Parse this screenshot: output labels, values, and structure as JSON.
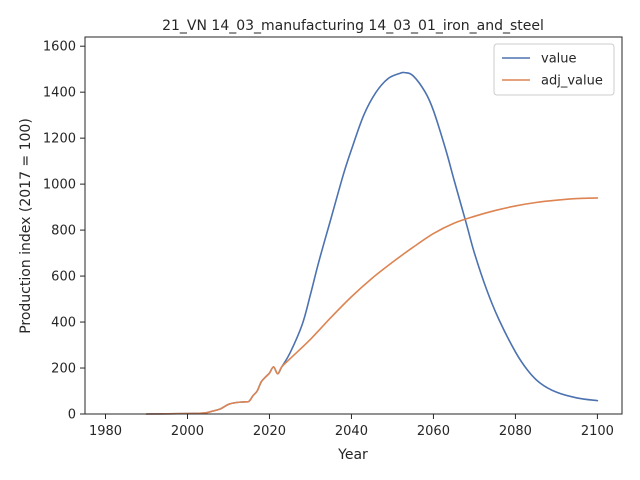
{
  "chart_data": {
    "type": "line",
    "title": "21_VN 14_03_manufacturing 14_03_01_iron_and_steel",
    "xlabel": "Year",
    "ylabel": "Production index (2017 = 100)",
    "xlim": [
      1975,
      2106
    ],
    "ylim": [
      0,
      1640
    ],
    "xticks": [
      "1980",
      "2000",
      "2020",
      "2040",
      "2060",
      "2080",
      "2100"
    ],
    "yticks": [
      "0",
      "200",
      "400",
      "600",
      "800",
      "1000",
      "1200",
      "1400",
      "1600"
    ],
    "grid": false,
    "legend_position": "top-right",
    "series": [
      {
        "name": "value",
        "color": "#4c72b0",
        "points": [
          [
            1990,
            0
          ],
          [
            2000,
            2
          ],
          [
            2004,
            4
          ],
          [
            2006,
            12
          ],
          [
            2008,
            22
          ],
          [
            2010,
            42
          ],
          [
            2012,
            50
          ],
          [
            2014,
            53
          ],
          [
            2015,
            55
          ],
          [
            2016,
            80
          ],
          [
            2017,
            100
          ],
          [
            2018,
            140
          ],
          [
            2019,
            160
          ],
          [
            2020,
            178
          ],
          [
            2021,
            205
          ],
          [
            2022,
            175
          ],
          [
            2023,
            205
          ],
          [
            2025,
            265
          ],
          [
            2028,
            390
          ],
          [
            2030,
            520
          ],
          [
            2032,
            660
          ],
          [
            2035,
            850
          ],
          [
            2038,
            1040
          ],
          [
            2040,
            1150
          ],
          [
            2043,
            1300
          ],
          [
            2046,
            1400
          ],
          [
            2049,
            1460
          ],
          [
            2052,
            1483
          ],
          [
            2053,
            1485
          ],
          [
            2055,
            1472
          ],
          [
            2058,
            1400
          ],
          [
            2060,
            1320
          ],
          [
            2063,
            1150
          ],
          [
            2065,
            1020
          ],
          [
            2068,
            830
          ],
          [
            2070,
            700
          ],
          [
            2073,
            540
          ],
          [
            2076,
            410
          ],
          [
            2080,
            270
          ],
          [
            2083,
            190
          ],
          [
            2086,
            135
          ],
          [
            2090,
            95
          ],
          [
            2095,
            70
          ],
          [
            2100,
            58
          ]
        ]
      },
      {
        "name": "adj_value",
        "color": "#dd8452",
        "points": [
          [
            1990,
            0
          ],
          [
            2000,
            2
          ],
          [
            2004,
            4
          ],
          [
            2006,
            12
          ],
          [
            2008,
            22
          ],
          [
            2010,
            42
          ],
          [
            2012,
            50
          ],
          [
            2014,
            53
          ],
          [
            2015,
            55
          ],
          [
            2016,
            80
          ],
          [
            2017,
            100
          ],
          [
            2018,
            140
          ],
          [
            2019,
            160
          ],
          [
            2020,
            178
          ],
          [
            2021,
            205
          ],
          [
            2022,
            175
          ],
          [
            2023,
            205
          ],
          [
            2025,
            240
          ],
          [
            2030,
            325
          ],
          [
            2035,
            420
          ],
          [
            2040,
            510
          ],
          [
            2045,
            590
          ],
          [
            2050,
            660
          ],
          [
            2055,
            725
          ],
          [
            2060,
            785
          ],
          [
            2065,
            830
          ],
          [
            2070,
            860
          ],
          [
            2075,
            885
          ],
          [
            2080,
            905
          ],
          [
            2085,
            920
          ],
          [
            2090,
            930
          ],
          [
            2095,
            937
          ],
          [
            2100,
            940
          ]
        ]
      }
    ]
  }
}
